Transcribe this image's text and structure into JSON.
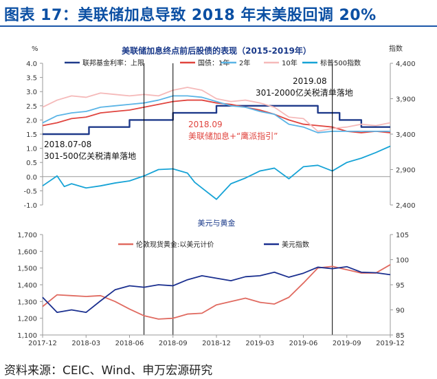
{
  "figure_title": "图表 17：美联储加息导致 2018 年末美股回调 20%",
  "source": "资料来源：CEIC、Wind、申万宏源研究",
  "colors": {
    "fed": "#1f3a8a",
    "y1": "#e0443e",
    "y2": "#5ab4e6",
    "y10": "#f5b9b9",
    "spx": "#16a3d6",
    "gold": "#e06a60",
    "dxy": "#1a2f8f"
  },
  "chart_data": [
    {
      "type": "line",
      "title": "美联储加息终点前后股债的表现（2015-2019年）",
      "ylabel_left": "%",
      "ylabel_right": "指数",
      "ylim_left": [
        -1.0,
        4.0
      ],
      "yticks_left": [
        "4.0",
        "3.5",
        "3.0",
        "2.5",
        "2.0",
        "1.5",
        "1.0",
        "0.5",
        "0.0",
        "-0.5",
        "-1.0"
      ],
      "ylim_right": [
        2400,
        4400
      ],
      "yticks_right": [
        "4,400",
        "3,900",
        "3,400",
        "2,900",
        "2,400"
      ],
      "x_range": [
        "2017-12",
        "2019-12"
      ],
      "legend": [
        "联邦基金利率：上限",
        "国债：1年",
        "2年",
        "10年",
        "标普500指数"
      ],
      "series": [
        {
          "name": "联邦基金利率：上限",
          "axis": "left",
          "points": [
            [
              0,
              1.5
            ],
            [
              3.2,
              1.75
            ],
            [
              6.0,
              2.0
            ],
            [
              9.0,
              2.25
            ],
            [
              12.0,
              2.5
            ],
            [
              19.0,
              2.25
            ],
            [
              20.5,
              2.0
            ],
            [
              22.0,
              1.75
            ],
            [
              24,
              1.75
            ]
          ]
        },
        {
          "name": "国债：1年",
          "axis": "left",
          "points": [
            [
              0,
              1.8
            ],
            [
              1,
              1.9
            ],
            [
              2,
              2.05
            ],
            [
              3,
              2.1
            ],
            [
              4,
              2.25
            ],
            [
              5,
              2.3
            ],
            [
              6,
              2.35
            ],
            [
              7,
              2.45
            ],
            [
              8,
              2.55
            ],
            [
              9,
              2.65
            ],
            [
              10,
              2.7
            ],
            [
              11,
              2.7
            ],
            [
              12,
              2.6
            ],
            [
              13,
              2.55
            ],
            [
              14,
              2.45
            ],
            [
              15,
              2.35
            ],
            [
              16,
              2.2
            ],
            [
              17,
              2.0
            ],
            [
              18,
              1.85
            ],
            [
              19,
              1.8
            ],
            [
              20,
              1.75
            ],
            [
              21,
              1.6
            ],
            [
              22,
              1.55
            ],
            [
              23,
              1.6
            ],
            [
              24,
              1.55
            ]
          ]
        },
        {
          "name": "2年",
          "axis": "left",
          "points": [
            [
              0,
              1.9
            ],
            [
              1,
              2.15
            ],
            [
              2,
              2.25
            ],
            [
              3,
              2.3
            ],
            [
              4,
              2.45
            ],
            [
              5,
              2.5
            ],
            [
              6,
              2.55
            ],
            [
              7,
              2.6
            ],
            [
              8,
              2.7
            ],
            [
              9,
              2.85
            ],
            [
              10,
              2.85
            ],
            [
              11,
              2.8
            ],
            [
              12,
              2.65
            ],
            [
              13,
              2.5
            ],
            [
              14,
              2.45
            ],
            [
              15,
              2.3
            ],
            [
              16,
              2.2
            ],
            [
              17,
              1.85
            ],
            [
              18,
              1.75
            ],
            [
              19,
              1.55
            ],
            [
              20,
              1.6
            ],
            [
              21,
              1.6
            ],
            [
              22,
              1.6
            ],
            [
              23,
              1.6
            ],
            [
              24,
              1.6
            ]
          ]
        },
        {
          "name": "10年",
          "axis": "left",
          "points": [
            [
              0,
              2.45
            ],
            [
              1,
              2.7
            ],
            [
              2,
              2.85
            ],
            [
              3,
              2.8
            ],
            [
              4,
              2.95
            ],
            [
              5,
              2.9
            ],
            [
              6,
              2.85
            ],
            [
              7,
              2.9
            ],
            [
              8,
              2.85
            ],
            [
              9,
              3.05
            ],
            [
              10,
              3.15
            ],
            [
              11,
              3.05
            ],
            [
              12,
              2.75
            ],
            [
              13,
              2.65
            ],
            [
              14,
              2.7
            ],
            [
              15,
              2.6
            ],
            [
              16,
              2.45
            ],
            [
              17,
              2.1
            ],
            [
              18,
              2.05
            ],
            [
              19,
              1.6
            ],
            [
              20,
              1.7
            ],
            [
              21,
              1.75
            ],
            [
              22,
              1.85
            ],
            [
              23,
              1.8
            ],
            [
              24,
              1.9
            ]
          ]
        },
        {
          "name": "标普500指数",
          "axis": "right",
          "points": [
            [
              0,
              2670
            ],
            [
              1,
              2810
            ],
            [
              1.5,
              2660
            ],
            [
              2,
              2700
            ],
            [
              3,
              2640
            ],
            [
              4,
              2670
            ],
            [
              5,
              2710
            ],
            [
              6,
              2740
            ],
            [
              7,
              2810
            ],
            [
              8,
              2900
            ],
            [
              9,
              2910
            ],
            [
              10,
              2850
            ],
            [
              10.5,
              2720
            ],
            [
              11,
              2640
            ],
            [
              12,
              2480
            ],
            [
              13,
              2700
            ],
            [
              14,
              2780
            ],
            [
              15,
              2880
            ],
            [
              16,
              2920
            ],
            [
              17,
              2770
            ],
            [
              18,
              2940
            ],
            [
              19,
              2960
            ],
            [
              20,
              2880
            ],
            [
              21,
              3000
            ],
            [
              22,
              3060
            ],
            [
              23,
              3140
            ],
            [
              24,
              3230
            ]
          ]
        }
      ],
      "annotations": [
        {
          "text": "2018.07-08",
          "sub": "301-500亿关税清单落地",
          "color": "#111111"
        },
        {
          "text": "2018.09",
          "sub": "美联储加息+“鹰派指引”",
          "color": "#e0443e"
        },
        {
          "text": "2019.08",
          "sub": "301-2000亿关税清单落地",
          "color": "#111111"
        }
      ]
    },
    {
      "type": "line",
      "title": "美元与黄金",
      "ylim_left": [
        1100,
        1700
      ],
      "yticks_left": [
        "1,700",
        "1,600",
        "1,500",
        "1,400",
        "1,300",
        "1,200",
        "1,100"
      ],
      "ylim_right": [
        85,
        105
      ],
      "yticks_right": [
        "105",
        "100",
        "95",
        "90",
        "85"
      ],
      "xticks": [
        "2017-12",
        "2018-03",
        "2018-06",
        "2018-09",
        "2018-12",
        "2019-03",
        "2019-06",
        "2019-09",
        "2019-12"
      ],
      "legend": [
        "伦敦现货黄金:以美元计价",
        "美元指数"
      ],
      "series": [
        {
          "name": "伦敦现货黄金:以美元计价",
          "axis": "left",
          "points": [
            [
              0,
              1270
            ],
            [
              1,
              1340
            ],
            [
              2,
              1335
            ],
            [
              3,
              1330
            ],
            [
              4,
              1335
            ],
            [
              5,
              1300
            ],
            [
              6,
              1255
            ],
            [
              7,
              1215
            ],
            [
              8,
              1195
            ],
            [
              9,
              1200
            ],
            [
              10,
              1225
            ],
            [
              11,
              1230
            ],
            [
              12,
              1280
            ],
            [
              13,
              1300
            ],
            [
              14,
              1320
            ],
            [
              15,
              1295
            ],
            [
              16,
              1285
            ],
            [
              17,
              1325
            ],
            [
              18,
              1410
            ],
            [
              19,
              1500
            ],
            [
              20,
              1510
            ],
            [
              21,
              1490
            ],
            [
              22,
              1470
            ],
            [
              23,
              1470
            ],
            [
              24,
              1520
            ]
          ]
        },
        {
          "name": "美元指数",
          "axis": "right",
          "points": [
            [
              0,
              92.5
            ],
            [
              1,
              89.5
            ],
            [
              2,
              90.0
            ],
            [
              3,
              89.5
            ],
            [
              4,
              91.8
            ],
            [
              5,
              94.0
            ],
            [
              6,
              94.8
            ],
            [
              7,
              94.5
            ],
            [
              8,
              95.0
            ],
            [
              9,
              94.8
            ],
            [
              10,
              96.0
            ],
            [
              11,
              96.8
            ],
            [
              12,
              96.3
            ],
            [
              13,
              95.8
            ],
            [
              14,
              96.6
            ],
            [
              15,
              96.8
            ],
            [
              16,
              97.5
            ],
            [
              17,
              96.5
            ],
            [
              18,
              97.3
            ],
            [
              19,
              98.5
            ],
            [
              20,
              98.2
            ],
            [
              21,
              98.6
            ],
            [
              22,
              97.5
            ],
            [
              23,
              97.4
            ],
            [
              24,
              97.0
            ]
          ]
        }
      ]
    }
  ]
}
